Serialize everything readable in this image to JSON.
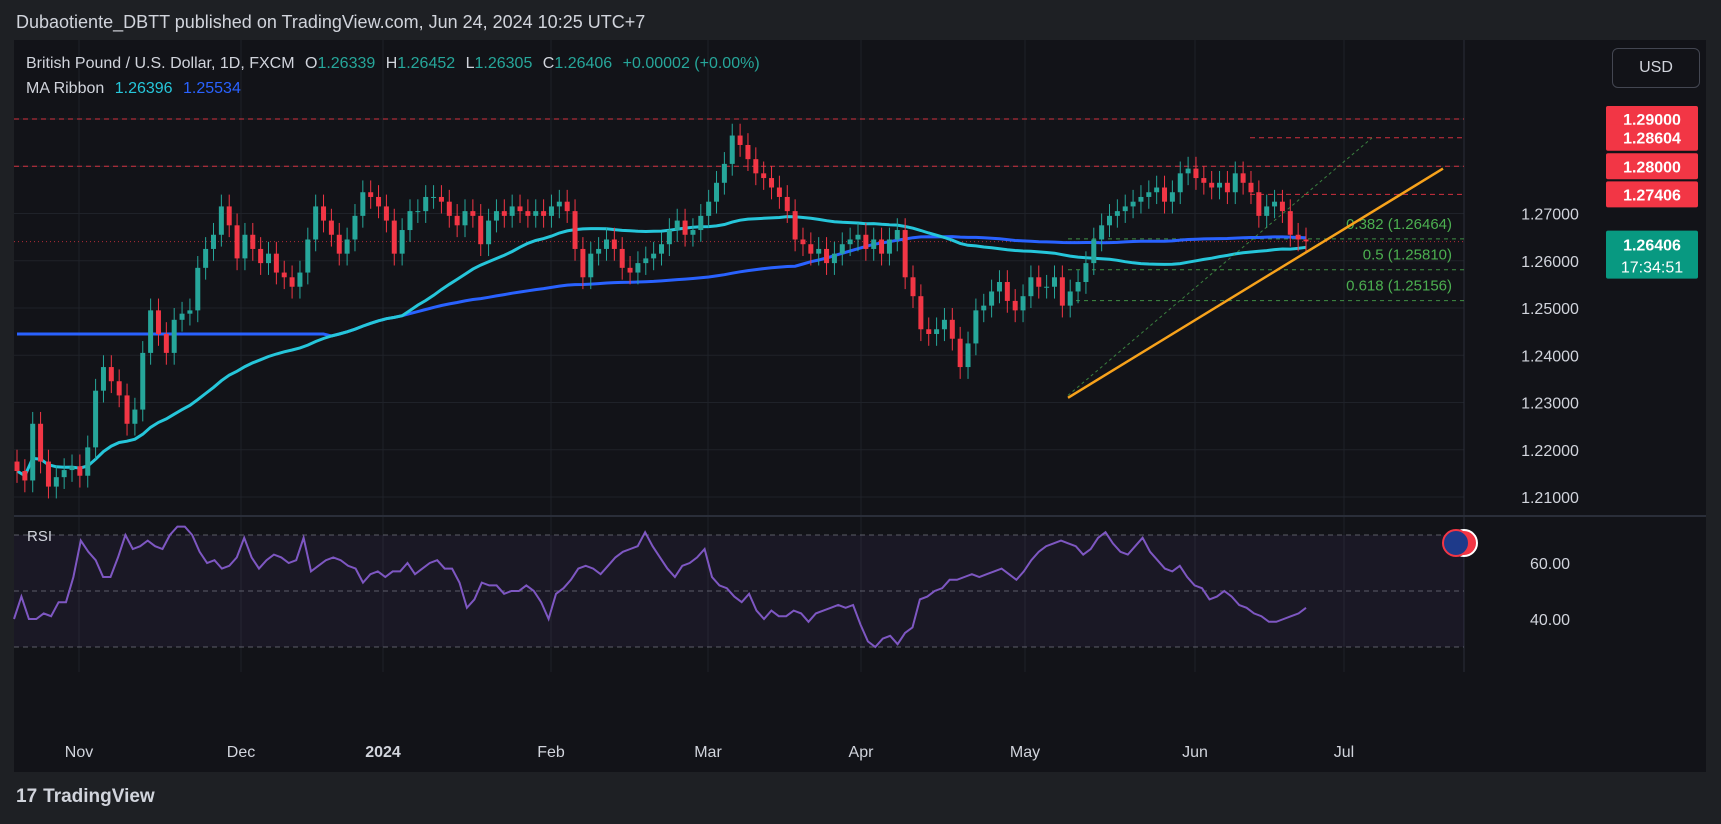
{
  "header": {
    "published": "Dubaotiente_DBTT published on TradingView.com, Jun 24, 2024 10:25 UTC+7"
  },
  "legend": {
    "symbol": "British Pound / U.S. Dollar, 1D, FXCM",
    "o_label": "O",
    "o_value": "1.26339",
    "h_label": "H",
    "h_value": "1.26452",
    "l_label": "L",
    "l_value": "1.26305",
    "c_label": "C",
    "c_value": "1.26406",
    "change": "+0.00002 (+0.00%)",
    "ma_label": "MA Ribbon",
    "ma1": "1.26396",
    "ma2": "1.25534"
  },
  "currency_button": "USD",
  "footer": {
    "logo_icon": "tradingview-logo-icon",
    "brand": "TradingView"
  },
  "colors": {
    "up": "#26a69a",
    "down": "#f23645",
    "ma_fast": "#26c6da",
    "ma_slow": "#2962ff",
    "trendline": "#f7a21b",
    "fib": "#4caf50",
    "rsi": "#7e57c2",
    "resistance": "#f23645"
  },
  "chart_data": [
    {
      "type": "candlestick",
      "title": "British Pound / U.S. Dollar, 1D, FXCM",
      "x_ticks": [
        "Nov",
        "Dec",
        "2024",
        "Feb",
        "Mar",
        "Apr",
        "May",
        "Jun",
        "Jul"
      ],
      "y_ticks": [
        "1.21000",
        "1.22000",
        "1.23000",
        "1.24000",
        "1.25000",
        "1.26000",
        "1.27000",
        "1.28000",
        "1.29000"
      ],
      "ylim": [
        1.205,
        1.2985
      ],
      "last_price": "1.26406",
      "countdown": "17:34:51",
      "price_labels": [
        {
          "value": 1.29,
          "text": "1.29000"
        },
        {
          "value": 1.28604,
          "text": "1.28604"
        },
        {
          "value": 1.28,
          "text": "1.28000"
        },
        {
          "value": 1.27406,
          "text": "1.27406"
        }
      ],
      "horizontal_lines": [
        1.29,
        1.28604,
        1.28,
        1.27406
      ],
      "fibonacci": [
        {
          "label": "0.382 (1.26464)",
          "value": 1.26464
        },
        {
          "label": "0.5 (1.25810)",
          "value": 1.2581
        },
        {
          "label": "0.618 (1.25156)",
          "value": 1.25156
        }
      ],
      "closes": [
        1.2155,
        1.2135,
        1.2255,
        1.2175,
        1.2122,
        1.2142,
        1.2157,
        1.2165,
        1.2145,
        1.2205,
        1.2325,
        1.2375,
        1.2345,
        1.2315,
        1.2255,
        1.2285,
        1.2405,
        1.2495,
        1.2445,
        1.2405,
        1.2475,
        1.2488,
        1.2495,
        1.2585,
        1.2625,
        1.2655,
        1.2715,
        1.2675,
        1.2605,
        1.2655,
        1.2625,
        1.2595,
        1.2615,
        1.2575,
        1.2565,
        1.2545,
        1.2575,
        1.2645,
        1.2715,
        1.2685,
        1.2655,
        1.2615,
        1.2645,
        1.2695,
        1.2745,
        1.2735,
        1.2715,
        1.2685,
        1.2615,
        1.2665,
        1.2705,
        1.2705,
        1.2735,
        1.2735,
        1.2725,
        1.2695,
        1.2675,
        1.2705,
        1.2695,
        1.2635,
        1.2685,
        1.2705,
        1.2695,
        1.2715,
        1.2705,
        1.2695,
        1.2705,
        1.2695,
        1.2715,
        1.2725,
        1.2705,
        1.2625,
        1.2565,
        1.2615,
        1.2625,
        1.2645,
        1.2625,
        1.2585,
        1.2575,
        1.2595,
        1.2605,
        1.2615,
        1.2635,
        1.2665,
        1.2685,
        1.2655,
        1.2665,
        1.2695,
        1.2725,
        1.2765,
        1.2805,
        1.2865,
        1.2845,
        1.2815,
        1.2785,
        1.2775,
        1.2755,
        1.2735,
        1.2705,
        1.2645,
        1.2635,
        1.2615,
        1.2625,
        1.2595,
        1.2615,
        1.2635,
        1.2645,
        1.2655,
        1.2625,
        1.2645,
        1.2615,
        1.2645,
        1.2665,
        1.2565,
        1.2525,
        1.2455,
        1.2445,
        1.2455,
        1.2475,
        1.2435,
        1.2375,
        1.2425,
        1.2495,
        1.2505,
        1.2535,
        1.2555,
        1.2515,
        1.2495,
        1.2525,
        1.2565,
        1.2545,
        1.2545,
        1.2565,
        1.2505,
        1.2535,
        1.2555,
        1.2595,
        1.2645,
        1.2675,
        1.2695,
        1.2705,
        1.2715,
        1.2725,
        1.2735,
        1.2745,
        1.2755,
        1.2725,
        1.2745,
        1.2785,
        1.2795,
        1.2775,
        1.2765,
        1.2755,
        1.2765,
        1.2745,
        1.2785,
        1.2765,
        1.2745,
        1.2695,
        1.2715,
        1.2725,
        1.2705,
        1.2655,
        1.2645,
        1.2641
      ]
    },
    {
      "type": "line",
      "title": "RSI",
      "y_ticks": [
        "40.00",
        "60.00"
      ],
      "ylim": [
        29,
        71.5
      ],
      "band": [
        30,
        70
      ],
      "midline": 50,
      "values": [
        40,
        48,
        40,
        40,
        42,
        41,
        46,
        46,
        55,
        68,
        64,
        61,
        55,
        55,
        62,
        70,
        65,
        66,
        68,
        66,
        65,
        70,
        73,
        73,
        70,
        64,
        60,
        61,
        58,
        59,
        62,
        69,
        62,
        58,
        61,
        63,
        62,
        60,
        61,
        69,
        57,
        59,
        61,
        62,
        61,
        59,
        58,
        53,
        56,
        57,
        55,
        57,
        57,
        60,
        56,
        58,
        60,
        61,
        58,
        58,
        53,
        44,
        47,
        53,
        52,
        52,
        49,
        50,
        50,
        52,
        50,
        46,
        40,
        49,
        51,
        54,
        58,
        59,
        58,
        56,
        59,
        62,
        64,
        65,
        66,
        71,
        66,
        62,
        58,
        55,
        59,
        60,
        62,
        65,
        55,
        52,
        51,
        48,
        46,
        49,
        43,
        40,
        43,
        41,
        41,
        43,
        42,
        39,
        42,
        43,
        44,
        45,
        44,
        45,
        38,
        32,
        30,
        33,
        34,
        31,
        35,
        37,
        47,
        48,
        50,
        51,
        54,
        54,
        55,
        56,
        55,
        56,
        57,
        58,
        56,
        54,
        57,
        61,
        64,
        66,
        67,
        68,
        67,
        66,
        63,
        65,
        69,
        71,
        67,
        64,
        63,
        66,
        69,
        64,
        61,
        58,
        57,
        59,
        55,
        52,
        51,
        47,
        48,
        50,
        48,
        45,
        44,
        42,
        41,
        39,
        39,
        40,
        41,
        42,
        44
      ]
    }
  ]
}
